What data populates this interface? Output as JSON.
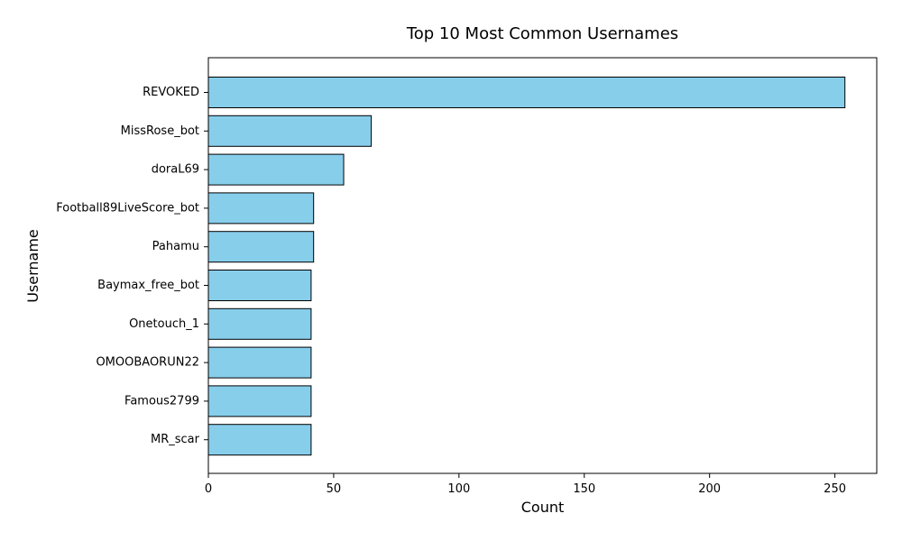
{
  "chart_data": {
    "type": "bar",
    "orientation": "horizontal",
    "title": "Top 10 Most Common Usernames",
    "xlabel": "Count",
    "ylabel": "Username",
    "categories": [
      "REVOKED",
      "MissRose_bot",
      "doraL69",
      "Football89LiveScore_bot",
      "Pahamu",
      "Baymax_free_bot",
      "Onetouch_1",
      "OMOOBAORUN22",
      "Famous2799",
      "MR_scar"
    ],
    "values": [
      254,
      65,
      54,
      42,
      42,
      41,
      41,
      41,
      41,
      41
    ],
    "xlim": [
      0,
      266.7
    ],
    "xticks": [
      0,
      50,
      100,
      150,
      200,
      250
    ],
    "grid": false,
    "bar_color": "#87CEEB",
    "bar_edge_color": "#000000"
  }
}
